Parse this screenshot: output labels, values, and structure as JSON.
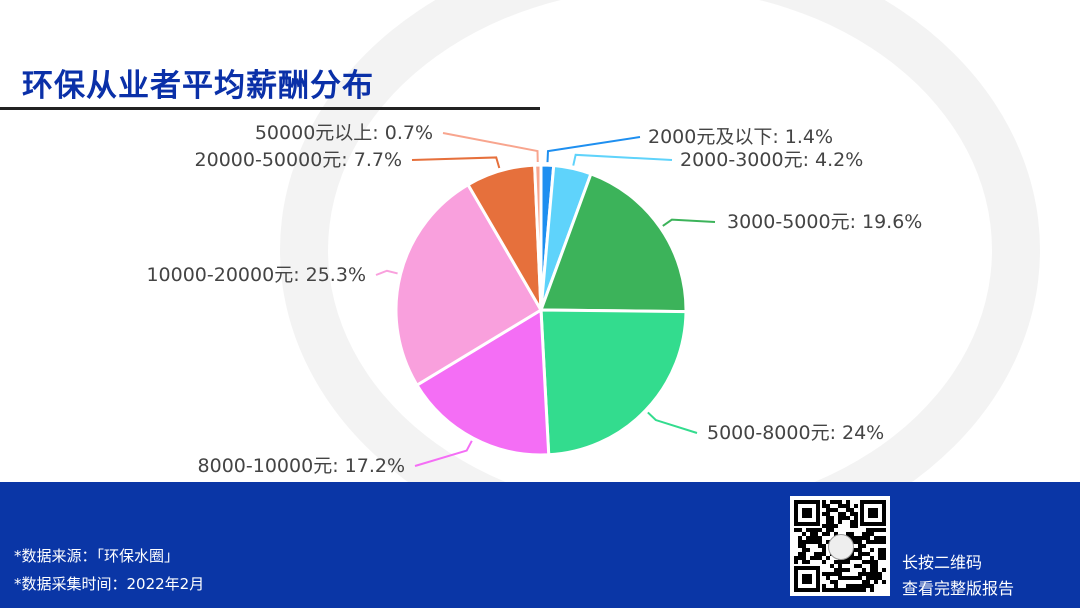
{
  "title": "环保从业者平均薪酬分布",
  "chart_data": {
    "type": "pie",
    "start": "top",
    "direction": "clockwise",
    "slices": [
      {
        "label": "2000元及以下: 1.4%",
        "name": "2000元及以下",
        "value": 1.4,
        "color": "#1e8ff0"
      },
      {
        "label": "2000-3000元: 4.2%",
        "name": "2000-3000元",
        "value": 4.2,
        "color": "#5fd3fb"
      },
      {
        "label": "3000-5000元: 19.6%",
        "name": "3000-5000元",
        "value": 19.6,
        "color": "#3cb35a"
      },
      {
        "label": "5000-8000元: 24%",
        "name": "5000-8000元",
        "value": 24,
        "color": "#33dc8e"
      },
      {
        "label": "8000-10000元: 17.2%",
        "name": "8000-10000元",
        "value": 17.2,
        "color": "#f46ef5"
      },
      {
        "label": "10000-20000元: 25.3%",
        "name": "10000-20000元",
        "value": 25.3,
        "color": "#f9a0dd"
      },
      {
        "label": "20000-50000元: 7.7%",
        "name": "20000-50000元",
        "value": 7.7,
        "color": "#e6703c"
      },
      {
        "label": "50000元以上: 0.7%",
        "name": "50000元以上",
        "value": 0.7,
        "color": "#f8a58e"
      }
    ]
  },
  "footer": {
    "source": "*数据来源：「环保水圈」",
    "time": "*数据采集时间：2022年2月",
    "qr_line1": "长按二维码",
    "qr_line2": "查看完整版报告",
    "background": "#0a36a6"
  }
}
